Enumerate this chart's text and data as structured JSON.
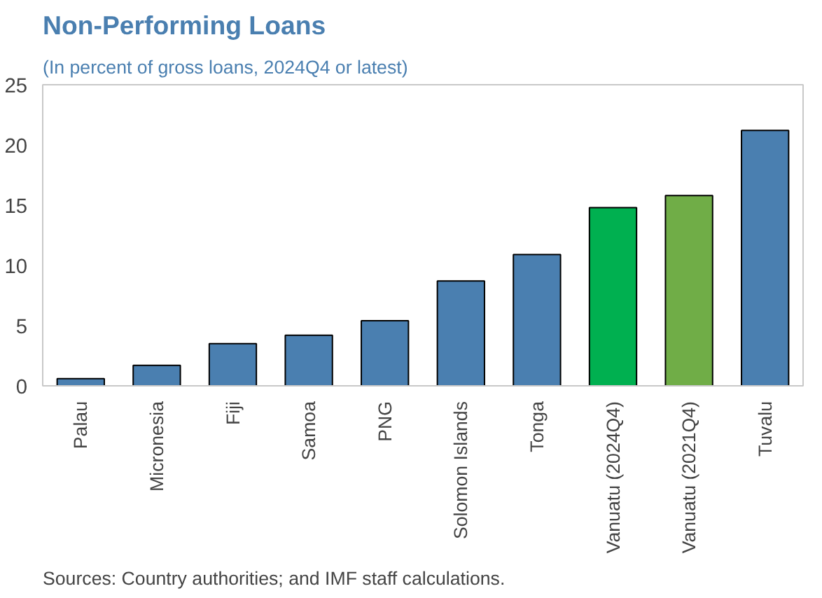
{
  "chart_data": {
    "type": "bar",
    "title": "Non-Performing Loans",
    "subtitle": "(In percent of gross loans, 2024Q4 or latest)",
    "categories": [
      "Palau",
      "Micronesia",
      "Fiji",
      "Samoa",
      "PNG",
      "Solomon Islands",
      "Tonga",
      "Vanuatu (2024Q4)",
      "Vanuatu (2021Q4)",
      "Tuvalu"
    ],
    "values": [
      0.6,
      1.7,
      3.5,
      4.2,
      5.4,
      8.7,
      10.9,
      14.8,
      15.8,
      21.2
    ],
    "colors": [
      "#4a7fb0",
      "#4a7fb0",
      "#4a7fb0",
      "#4a7fb0",
      "#4a7fb0",
      "#4a7fb0",
      "#4a7fb0",
      "#00b050",
      "#70ad47",
      "#4a7fb0"
    ],
    "ylim": [
      0,
      25
    ],
    "yticks": [
      0,
      5,
      10,
      15,
      20,
      25
    ],
    "grid": false,
    "annotations": [
      "Sources: Country authorities; and IMF staff calculations."
    ]
  }
}
